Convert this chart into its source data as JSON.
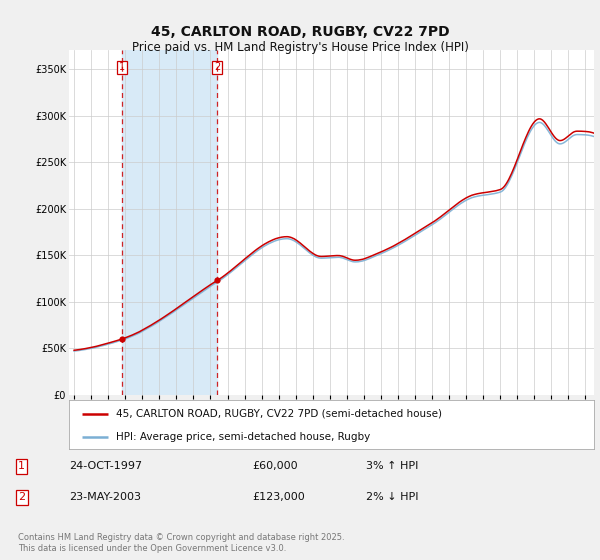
{
  "title": "45, CARLTON ROAD, RUGBY, CV22 7PD",
  "subtitle": "Price paid vs. HM Land Registry's House Price Index (HPI)",
  "legend_line1": "45, CARLTON ROAD, RUGBY, CV22 7PD (semi-detached house)",
  "legend_line2": "HPI: Average price, semi-detached house, Rugby",
  "transaction1_label": "1",
  "transaction1_date": "24-OCT-1997",
  "transaction1_price": "£60,000",
  "transaction1_hpi": "3% ↑ HPI",
  "transaction1_year": 1997.81,
  "transaction1_value": 60000,
  "transaction2_label": "2",
  "transaction2_date": "23-MAY-2003",
  "transaction2_price": "£123,000",
  "transaction2_hpi": "2% ↓ HPI",
  "transaction2_year": 2003.38,
  "transaction2_value": 123000,
  "ylabel_ticks": [
    0,
    50000,
    100000,
    150000,
    200000,
    250000,
    300000,
    350000
  ],
  "ylabel_labels": [
    "£0",
    "£50K",
    "£100K",
    "£150K",
    "£200K",
    "£250K",
    "£300K",
    "£350K"
  ],
  "xlim": [
    1994.7,
    2025.5
  ],
  "ylim": [
    0,
    370000
  ],
  "background_color": "#f0f0f0",
  "plot_bg_color": "#ffffff",
  "grid_color": "#cccccc",
  "line_color_red": "#cc0000",
  "line_color_blue": "#7bafd4",
  "dashed_line_color": "#cc0000",
  "span_color": "#d8eaf7",
  "footnote": "Contains HM Land Registry data © Crown copyright and database right 2025.\nThis data is licensed under the Open Government Licence v3.0.",
  "title_fontsize": 10,
  "subtitle_fontsize": 8.5,
  "tick_fontsize": 7,
  "legend_fontsize": 7.5,
  "footnote_fontsize": 6
}
